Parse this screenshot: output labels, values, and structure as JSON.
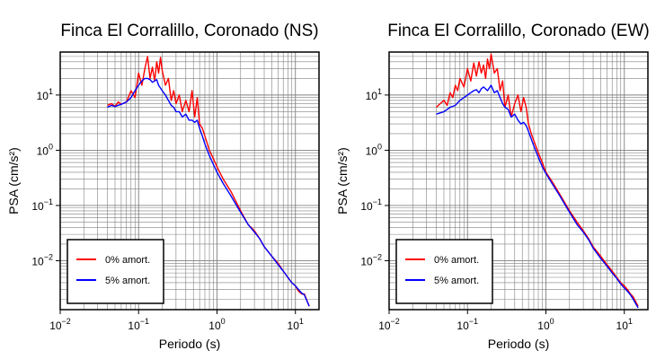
{
  "chart_data": [
    {
      "type": "line",
      "title": "Finca El Corralillo, Coronado (NS)",
      "xlabel": "Periodo (s)",
      "ylabel": "PSA (cm/s²)",
      "xscale": "log",
      "yscale": "log",
      "xlim": [
        0.01,
        20
      ],
      "ylim": [
        0.0013,
        60
      ],
      "grid": true,
      "legend_position": "bottom-left",
      "x_ticks": [
        {
          "base": "10",
          "exp": "−2"
        },
        {
          "base": "10",
          "exp": "−1"
        },
        {
          "base": "10",
          "exp": "0"
        },
        {
          "base": "10",
          "exp": "1"
        }
      ],
      "y_ticks": [
        {
          "base": "10",
          "exp": "−2"
        },
        {
          "base": "10",
          "exp": "−1"
        },
        {
          "base": "10",
          "exp": "0"
        },
        {
          "base": "10",
          "exp": "1"
        }
      ],
      "series": [
        {
          "name": "0% amort.",
          "color": "#ff0000",
          "x": [
            0.04,
            0.045,
            0.05,
            0.055,
            0.06,
            0.07,
            0.08,
            0.09,
            0.1,
            0.11,
            0.12,
            0.13,
            0.14,
            0.15,
            0.16,
            0.17,
            0.18,
            0.19,
            0.2,
            0.22,
            0.24,
            0.26,
            0.28,
            0.3,
            0.33,
            0.36,
            0.4,
            0.44,
            0.48,
            0.52,
            0.56,
            0.6,
            0.65,
            0.7,
            0.8,
            0.9,
            1.0,
            1.2,
            1.5,
            2.0,
            2.5,
            3.0,
            3.5,
            4.0,
            5.0,
            6.0,
            7.0,
            8.0,
            9.0,
            10.0,
            11.0,
            12.0,
            13.0,
            15.0
          ],
          "y": [
            6.5,
            7.0,
            6.2,
            7.5,
            6.8,
            7.5,
            12,
            9,
            25,
            15,
            30,
            50,
            20,
            32,
            18,
            40,
            25,
            48,
            28,
            15,
            20,
            8,
            12,
            7,
            10,
            5,
            8,
            5,
            12,
            4,
            9,
            3,
            2.5,
            1.8,
            1.0,
            0.7,
            0.5,
            0.3,
            0.18,
            0.08,
            0.045,
            0.035,
            0.025,
            0.018,
            0.012,
            0.009,
            0.0065,
            0.005,
            0.004,
            0.0035,
            0.0028,
            0.0025,
            0.0025,
            0.0015
          ]
        },
        {
          "name": "5% amort.",
          "color": "#0000ff",
          "x": [
            0.04,
            0.045,
            0.05,
            0.06,
            0.07,
            0.08,
            0.09,
            0.1,
            0.11,
            0.12,
            0.13,
            0.14,
            0.15,
            0.16,
            0.17,
            0.18,
            0.2,
            0.22,
            0.24,
            0.26,
            0.28,
            0.3,
            0.33,
            0.36,
            0.4,
            0.44,
            0.48,
            0.52,
            0.56,
            0.6,
            0.65,
            0.7,
            0.8,
            0.9,
            1.0,
            1.2,
            1.5,
            2.0,
            2.5,
            3.0,
            3.5,
            4.0,
            5.0,
            6.0,
            7.0,
            8.0,
            9.0,
            10.0,
            11.0,
            12.0,
            13.0,
            15.0
          ],
          "y": [
            6,
            6.5,
            6.2,
            6.8,
            7.5,
            9,
            12,
            15,
            18,
            20,
            20,
            19,
            17,
            18,
            19,
            15,
            12,
            10,
            8,
            6.5,
            6,
            5,
            5,
            4,
            4.5,
            3.5,
            3.5,
            3.2,
            3.5,
            2.5,
            1.8,
            1.3,
            0.8,
            0.55,
            0.4,
            0.25,
            0.15,
            0.075,
            0.045,
            0.033,
            0.025,
            0.018,
            0.012,
            0.0085,
            0.0065,
            0.005,
            0.004,
            0.0035,
            0.003,
            0.0026,
            0.0024,
            0.0015
          ]
        }
      ]
    },
    {
      "type": "line",
      "title": "Finca El Corralillo, Coronado (EW)",
      "xlabel": "Periodo (s)",
      "ylabel": "PSA (cm/s²)",
      "xscale": "log",
      "yscale": "log",
      "xlim": [
        0.01,
        20
      ],
      "ylim": [
        0.0013,
        60
      ],
      "grid": true,
      "legend_position": "bottom-left",
      "x_ticks": [
        {
          "base": "10",
          "exp": "−2"
        },
        {
          "base": "10",
          "exp": "−1"
        },
        {
          "base": "10",
          "exp": "0"
        },
        {
          "base": "10",
          "exp": "1"
        }
      ],
      "y_ticks": [
        {
          "base": "10",
          "exp": "−2"
        },
        {
          "base": "10",
          "exp": "−1"
        },
        {
          "base": "10",
          "exp": "0"
        },
        {
          "base": "10",
          "exp": "1"
        }
      ],
      "series": [
        {
          "name": "0% amort.",
          "color": "#ff0000",
          "x": [
            0.04,
            0.045,
            0.05,
            0.055,
            0.06,
            0.065,
            0.07,
            0.075,
            0.08,
            0.09,
            0.1,
            0.11,
            0.12,
            0.13,
            0.14,
            0.15,
            0.16,
            0.17,
            0.18,
            0.19,
            0.2,
            0.22,
            0.24,
            0.26,
            0.28,
            0.3,
            0.33,
            0.36,
            0.4,
            0.44,
            0.48,
            0.52,
            0.56,
            0.6,
            0.65,
            0.7,
            0.8,
            0.9,
            1.0,
            1.2,
            1.5,
            2.0,
            2.5,
            3.0,
            3.5,
            4.0,
            5.0,
            6.0,
            7.0,
            8.0,
            9.0,
            10.0,
            11.0,
            12.0,
            13.0,
            15.0
          ],
          "y": [
            6,
            7,
            8,
            6.5,
            11,
            9,
            15,
            12,
            20,
            14,
            30,
            18,
            38,
            22,
            40,
            25,
            35,
            20,
            45,
            30,
            55,
            25,
            30,
            12,
            18,
            6,
            10,
            4,
            7,
            10,
            5,
            9,
            6,
            3,
            2.0,
            1.5,
            0.9,
            0.6,
            0.4,
            0.27,
            0.16,
            0.08,
            0.05,
            0.035,
            0.025,
            0.018,
            0.012,
            0.0085,
            0.0065,
            0.005,
            0.004,
            0.0035,
            0.003,
            0.0025,
            0.0022,
            0.0015
          ]
        },
        {
          "name": "5% amort.",
          "color": "#0000ff",
          "x": [
            0.04,
            0.05,
            0.06,
            0.07,
            0.08,
            0.09,
            0.1,
            0.11,
            0.12,
            0.13,
            0.14,
            0.15,
            0.16,
            0.18,
            0.2,
            0.22,
            0.24,
            0.26,
            0.28,
            0.3,
            0.33,
            0.36,
            0.4,
            0.44,
            0.48,
            0.52,
            0.56,
            0.6,
            0.65,
            0.7,
            0.8,
            0.9,
            1.0,
            1.2,
            1.5,
            2.0,
            2.5,
            3.0,
            3.5,
            4.0,
            5.0,
            6.0,
            7.0,
            8.0,
            9.0,
            10.0,
            11.0,
            12.0,
            13.0,
            15.0
          ],
          "y": [
            4.5,
            5,
            6,
            6.5,
            8,
            9,
            10,
            11,
            12,
            12.5,
            11,
            13,
            14,
            12,
            15,
            11,
            12,
            9,
            7,
            6,
            5.5,
            4,
            4.5,
            3.5,
            3,
            3.2,
            2.8,
            2.2,
            1.6,
            1.2,
            0.75,
            0.5,
            0.38,
            0.25,
            0.15,
            0.075,
            0.045,
            0.033,
            0.024,
            0.017,
            0.011,
            0.008,
            0.006,
            0.0048,
            0.0038,
            0.0032,
            0.0028,
            0.0024,
            0.002,
            0.0014
          ]
        }
      ]
    }
  ]
}
